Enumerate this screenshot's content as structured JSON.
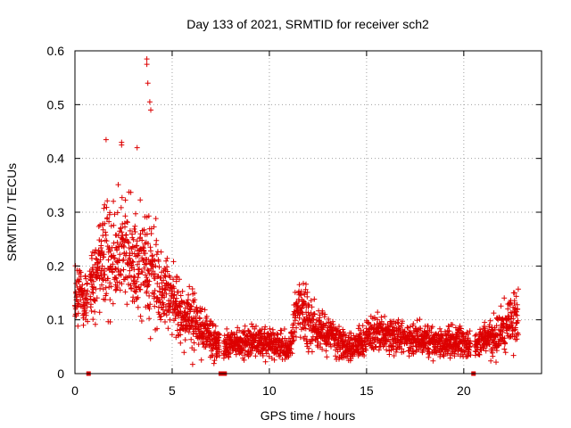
{
  "chart_data": {
    "type": "scatter",
    "title": "Day 133 of 2021, SRMTID for receiver sch2",
    "xlabel": "GPS time / hours",
    "ylabel": "SRMTID / TECUs",
    "xlim": [
      0,
      24
    ],
    "ylim": [
      0,
      0.6
    ],
    "x_ticks": [
      0,
      5,
      10,
      15,
      20
    ],
    "x_tick_labels": [
      "0",
      "5",
      "10",
      "15",
      "20"
    ],
    "y_ticks": [
      0,
      0.1,
      0.2,
      0.3,
      0.4,
      0.5,
      0.6
    ],
    "y_tick_labels": [
      "0",
      "0.1",
      "0.2",
      "0.3",
      "0.4",
      "0.5",
      "0.6"
    ],
    "grid": true,
    "marker": "plus",
    "series_color": "#dd0000",
    "envelope": {
      "x": [
        0,
        0.5,
        1,
        1.5,
        2,
        2.5,
        3,
        3.5,
        4,
        4.5,
        5,
        5.5,
        6,
        6.5,
        7,
        7.5,
        8,
        8.5,
        9,
        9.5,
        10,
        10.5,
        11,
        11.5,
        12,
        12.5,
        13,
        13.5,
        14,
        14.5,
        15,
        15.5,
        16,
        16.5,
        17,
        17.5,
        18,
        18.5,
        19,
        19.5,
        20,
        20.5,
        21,
        21.5,
        22,
        22.5,
        22.8
      ],
      "center": [
        0.15,
        0.14,
        0.17,
        0.22,
        0.22,
        0.24,
        0.2,
        0.19,
        0.2,
        0.16,
        0.14,
        0.11,
        0.1,
        0.08,
        0.07,
        0.05,
        0.055,
        0.055,
        0.06,
        0.06,
        0.055,
        0.05,
        0.045,
        0.12,
        0.1,
        0.08,
        0.075,
        0.065,
        0.05,
        0.05,
        0.07,
        0.075,
        0.075,
        0.07,
        0.065,
        0.065,
        0.065,
        0.06,
        0.06,
        0.06,
        0.06,
        0.055,
        0.06,
        0.065,
        0.08,
        0.1,
        0.11
      ],
      "spread": [
        0.09,
        0.07,
        0.1,
        0.14,
        0.14,
        0.14,
        0.14,
        0.16,
        0.16,
        0.12,
        0.09,
        0.07,
        0.09,
        0.05,
        0.05,
        0.035,
        0.03,
        0.03,
        0.035,
        0.035,
        0.035,
        0.03,
        0.03,
        0.08,
        0.08,
        0.05,
        0.045,
        0.04,
        0.035,
        0.035,
        0.05,
        0.05,
        0.04,
        0.04,
        0.035,
        0.035,
        0.035,
        0.035,
        0.035,
        0.035,
        0.035,
        0.035,
        0.035,
        0.045,
        0.06,
        0.06,
        0.1
      ]
    },
    "sample_interval_hours": 0.0125,
    "data_gaps": [
      [
        0.65,
        0.75
      ],
      [
        7.45,
        7.65
      ],
      [
        20.35,
        20.55
      ]
    ],
    "peak_points": [
      {
        "x": 3.7,
        "y": 0.585
      },
      {
        "x": 3.7,
        "y": 0.575
      },
      {
        "x": 3.75,
        "y": 0.54
      },
      {
        "x": 3.85,
        "y": 0.505
      },
      {
        "x": 3.9,
        "y": 0.49
      },
      {
        "x": 2.4,
        "y": 0.43
      },
      {
        "x": 2.4,
        "y": 0.425
      },
      {
        "x": 3.2,
        "y": 0.42
      },
      {
        "x": 1.6,
        "y": 0.435
      }
    ],
    "zero_markers_x": [
      0.7,
      7.5,
      7.7,
      20.5
    ]
  }
}
